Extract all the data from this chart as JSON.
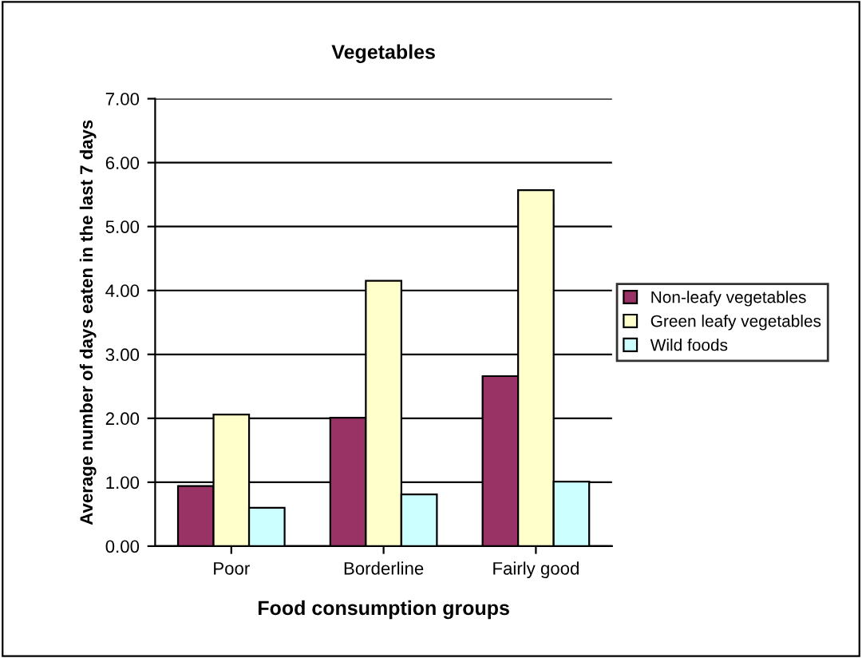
{
  "chart_data": {
    "type": "bar",
    "title": "Vegetables",
    "xlabel": "Food consumption groups",
    "ylabel": "Average number of days eaten in the last 7 days",
    "categories": [
      "Poor",
      "Borderline",
      "Fairly good"
    ],
    "series": [
      {
        "name": "Non-leafy vegetables",
        "color": "#993366",
        "values": [
          0.94,
          2.01,
          2.66
        ]
      },
      {
        "name": "Green leafy vegetables",
        "color": "#ffffcc",
        "values": [
          2.06,
          4.15,
          5.57
        ]
      },
      {
        "name": "Wild foods",
        "color": "#ccffff",
        "values": [
          0.6,
          0.81,
          1.01
        ]
      }
    ],
    "ylim": [
      0,
      7
    ],
    "yticks": [
      {
        "value": 0,
        "label": "0.00"
      },
      {
        "value": 1,
        "label": "1.00"
      },
      {
        "value": 2,
        "label": "2.00"
      },
      {
        "value": 3,
        "label": "3.00"
      },
      {
        "value": 4,
        "label": "4.00"
      },
      {
        "value": 5,
        "label": "5.00"
      },
      {
        "value": 6,
        "label": "6.00"
      },
      {
        "value": 7,
        "label": "7.00"
      }
    ],
    "grid": "y",
    "legend": "right"
  }
}
